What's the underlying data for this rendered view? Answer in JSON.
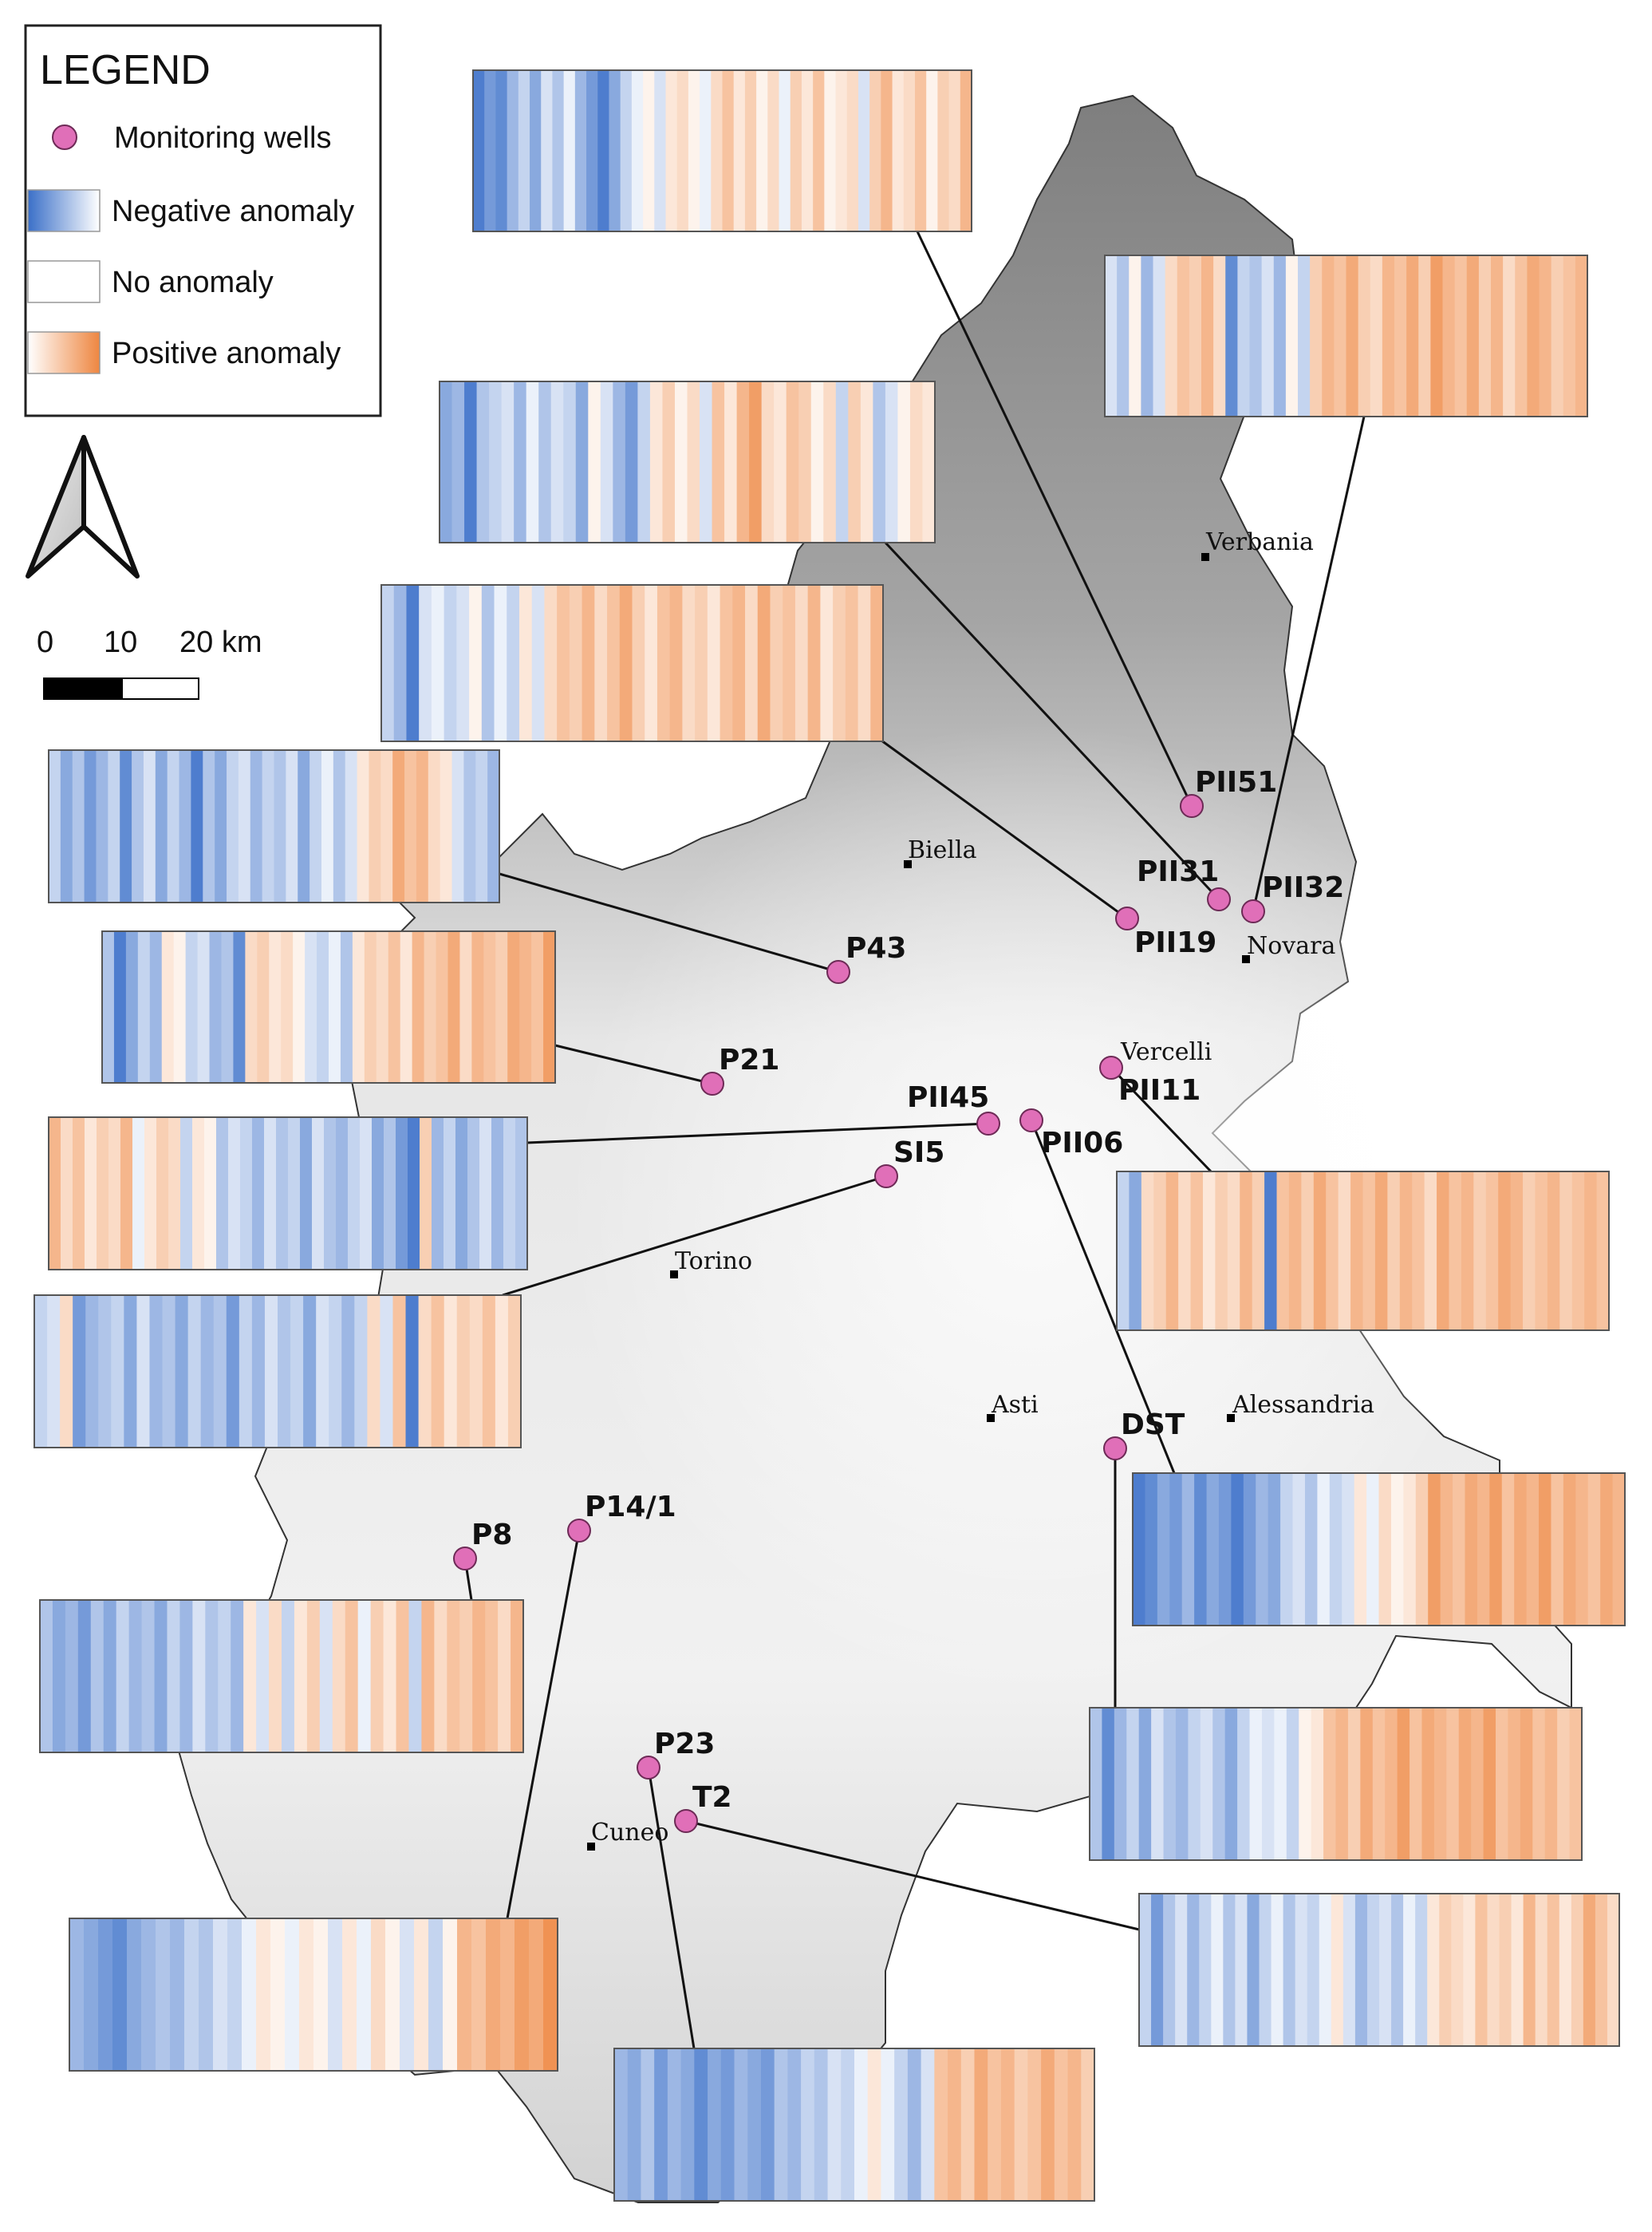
{
  "legend": {
    "title": "LEGEND",
    "items": [
      {
        "label": "Monitoring wells",
        "symbol": "well-dot",
        "color": "#e06fb8"
      },
      {
        "label": "Negative anomaly",
        "symbol": "gradient-negative",
        "color": "#3a6fc8"
      },
      {
        "label": "No anomaly",
        "symbol": "blank",
        "color": "#ffffff"
      },
      {
        "label": "Positive anomaly",
        "symbol": "gradient-positive",
        "color": "#ee8640"
      }
    ]
  },
  "north_arrow": {
    "icon": "north-arrow-icon"
  },
  "scale_bar": {
    "ticks": [
      "0",
      "10",
      "20 km"
    ]
  },
  "towns": [
    "Verbania",
    "Biella",
    "Novara",
    "Vercelli",
    "Torino",
    "Asti",
    "Alessandria",
    "Cuneo"
  ],
  "wells": [
    "PII51",
    "PII31",
    "PII32",
    "PII19",
    "P43",
    "P21",
    "PII45",
    "PII11",
    "PII06",
    "SI5",
    "DST",
    "P8",
    "P14/1",
    "P23",
    "T2"
  ],
  "stripe_panels": [
    {
      "well": "PII51",
      "pattern": [
        -0.9,
        -0.7,
        -0.8,
        -0.5,
        -0.3,
        -0.6,
        -0.2,
        -0.4,
        -0.1,
        -0.5,
        -0.7,
        -0.9,
        -0.6,
        -0.3,
        -0.1,
        0.1,
        -0.2,
        0.2,
        0.3,
        0.1,
        -0.1,
        0.3,
        0.5,
        0.2,
        0.4,
        0.1,
        0.3,
        -0.1,
        0.4,
        0.2,
        0.5,
        0.1,
        0.2,
        0.3,
        -0.2,
        0.4,
        0.6,
        0.2,
        0.3,
        0.5,
        0.1,
        0.4,
        0.3,
        0.6
      ]
    },
    {
      "well": "PII32",
      "pattern": [
        -0.2,
        -0.4,
        0.1,
        -0.5,
        -0.2,
        0.3,
        0.5,
        0.4,
        0.6,
        0.3,
        -0.8,
        -0.3,
        -0.4,
        -0.2,
        -0.5,
        0.1,
        -0.3,
        0.4,
        0.6,
        0.5,
        0.7,
        0.4,
        0.3,
        0.6,
        0.5,
        0.7,
        0.4,
        0.8,
        0.6,
        0.5,
        0.7,
        0.4,
        0.6,
        0.3,
        0.5,
        0.7,
        0.6,
        0.4,
        0.5,
        0.6
      ]
    },
    {
      "well": "PII31",
      "pattern": [
        -0.6,
        -0.5,
        -0.9,
        -0.4,
        -0.3,
        -0.2,
        -0.5,
        -0.1,
        -0.4,
        -0.2,
        -0.3,
        -0.6,
        0.1,
        -0.2,
        -0.5,
        -0.7,
        -0.3,
        0.2,
        0.4,
        0.1,
        0.3,
        -0.2,
        0.5,
        0.2,
        0.6,
        0.8,
        0.3,
        0.2,
        0.5,
        0.4,
        0.1,
        0.3,
        -0.3,
        0.4,
        0.2,
        -0.4,
        -0.2,
        0.1,
        0.3,
        0.2
      ]
    },
    {
      "well": "PII19",
      "pattern": [
        -0.3,
        -0.5,
        -0.9,
        -0.2,
        -0.1,
        -0.3,
        -0.2,
        0.1,
        -0.4,
        -0.1,
        -0.3,
        0.2,
        -0.2,
        0.3,
        0.5,
        0.4,
        0.6,
        0.3,
        0.5,
        0.7,
        0.4,
        0.2,
        0.5,
        0.6,
        0.3,
        0.4,
        0.2,
        0.5,
        0.6,
        0.3,
        0.7,
        0.4,
        0.5,
        0.3,
        0.6,
        0.2,
        0.4,
        0.5,
        0.3,
        0.6
      ]
    },
    {
      "well": "P43",
      "pattern": [
        -0.3,
        -0.6,
        -0.4,
        -0.7,
        -0.5,
        -0.3,
        -0.8,
        -0.4,
        -0.2,
        -0.6,
        -0.3,
        -0.5,
        -0.9,
        -0.4,
        -0.6,
        -0.3,
        -0.2,
        -0.5,
        -0.3,
        -0.4,
        -0.2,
        -0.6,
        -0.3,
        -0.1,
        -0.4,
        -0.2,
        0.2,
        0.4,
        0.3,
        0.7,
        0.5,
        0.6,
        0.3,
        0.2,
        -0.2,
        -0.4,
        -0.3,
        -0.5
      ]
    },
    {
      "well": "P21",
      "pattern": [
        -0.4,
        -0.9,
        -0.6,
        -0.3,
        -0.5,
        0.2,
        0.1,
        -0.3,
        -0.2,
        -0.5,
        -0.4,
        -0.8,
        0.3,
        0.4,
        0.2,
        0.3,
        0.1,
        -0.2,
        -0.3,
        -0.1,
        -0.4,
        0.2,
        0.4,
        0.3,
        0.5,
        0.2,
        0.6,
        0.4,
        0.5,
        0.7,
        0.3,
        0.6,
        0.5,
        0.4,
        0.7,
        0.6,
        0.5,
        0.8
      ]
    },
    {
      "well": "PII45",
      "pattern": [
        0.6,
        0.3,
        0.5,
        0.2,
        0.4,
        0.3,
        0.6,
        -0.1,
        0.2,
        0.4,
        0.3,
        -0.3,
        0.2,
        0.1,
        -0.4,
        -0.2,
        -0.3,
        -0.5,
        -0.2,
        -0.4,
        -0.3,
        -0.6,
        -0.2,
        -0.4,
        -0.5,
        -0.3,
        -0.2,
        -0.6,
        -0.4,
        -0.7,
        -0.9,
        0.4,
        -0.5,
        -0.3,
        -0.6,
        -0.4,
        -0.2,
        -0.5,
        -0.3,
        -0.4
      ]
    },
    {
      "well": "SI5",
      "pattern": [
        -0.3,
        -0.2,
        0.3,
        -0.7,
        -0.5,
        -0.4,
        -0.3,
        -0.6,
        -0.2,
        -0.5,
        -0.4,
        -0.6,
        -0.3,
        -0.5,
        -0.4,
        -0.7,
        -0.3,
        -0.5,
        -0.2,
        -0.4,
        -0.3,
        -0.6,
        -0.2,
        -0.3,
        -0.5,
        -0.3,
        0.3,
        -0.2,
        0.5,
        -0.9,
        0.3,
        0.5,
        0.2,
        0.4,
        0.3,
        0.5,
        0.2,
        0.4
      ]
    },
    {
      "well": "PII11",
      "pattern": [
        -0.3,
        -0.6,
        0.3,
        0.4,
        0.6,
        0.3,
        0.5,
        0.2,
        0.4,
        0.3,
        0.6,
        0.4,
        -0.9,
        0.5,
        0.6,
        0.4,
        0.7,
        0.5,
        0.3,
        0.6,
        0.5,
        0.7,
        0.4,
        0.6,
        0.5,
        0.3,
        0.7,
        0.5,
        0.6,
        0.4,
        0.5,
        0.7,
        0.6,
        0.4,
        0.5,
        0.6,
        0.4,
        0.5,
        0.6,
        0.5
      ]
    },
    {
      "well": "PII06",
      "pattern": [
        -0.9,
        -0.8,
        -0.6,
        -0.7,
        -0.5,
        -0.8,
        -0.6,
        -0.7,
        -0.9,
        -0.7,
        -0.5,
        -0.6,
        -0.3,
        -0.2,
        -0.4,
        -0.1,
        -0.3,
        -0.2,
        0.2,
        -0.1,
        0.3,
        0.1,
        0.2,
        0.4,
        0.8,
        0.6,
        0.5,
        0.7,
        0.6,
        0.8,
        0.5,
        0.7,
        0.6,
        0.8,
        0.5,
        0.7,
        0.6,
        0.5,
        0.7,
        0.6
      ]
    },
    {
      "well": "DST",
      "pattern": [
        -0.4,
        -0.8,
        -0.5,
        -0.3,
        -0.6,
        -0.2,
        -0.4,
        -0.5,
        -0.3,
        -0.2,
        -0.4,
        -0.6,
        -0.3,
        -0.1,
        -0.2,
        -0.1,
        -0.3,
        0.1,
        0.2,
        0.5,
        0.6,
        0.4,
        0.7,
        0.5,
        0.6,
        0.8,
        0.5,
        0.7,
        0.6,
        0.5,
        0.7,
        0.6,
        0.8,
        0.5,
        0.6,
        0.7,
        0.5,
        0.6,
        0.4,
        0.5
      ]
    },
    {
      "well": "P8",
      "pattern": [
        -0.4,
        -0.6,
        -0.5,
        -0.7,
        -0.4,
        -0.6,
        -0.3,
        -0.5,
        -0.4,
        -0.6,
        -0.3,
        -0.5,
        -0.2,
        -0.4,
        -0.3,
        -0.5,
        0.2,
        -0.2,
        0.3,
        -0.3,
        0.2,
        0.4,
        -0.2,
        0.3,
        0.5,
        -0.1,
        0.4,
        0.2,
        0.5,
        -0.3,
        0.6,
        0.3,
        0.5,
        0.4,
        0.6,
        0.5,
        0.3,
        0.6
      ]
    },
    {
      "well": "P14/1",
      "pattern": [
        -0.5,
        -0.6,
        -0.7,
        -0.8,
        -0.6,
        -0.5,
        -0.4,
        -0.5,
        -0.3,
        -0.4,
        -0.2,
        -0.3,
        -0.1,
        0.2,
        0.1,
        -0.1,
        0.2,
        0.1,
        -0.2,
        0.2,
        -0.1,
        0.3,
        0.1,
        -0.2,
        0.2,
        -0.3,
        0.1,
        0.6,
        0.5,
        0.7,
        0.6,
        0.8,
        0.7,
        0.9
      ]
    },
    {
      "well": "T2",
      "pattern": [
        -0.3,
        -0.7,
        -0.4,
        -0.2,
        -0.5,
        -0.3,
        -0.1,
        -0.4,
        -0.2,
        -0.6,
        -0.3,
        -0.1,
        -0.4,
        -0.2,
        -0.3,
        -0.1,
        0.2,
        -0.2,
        -0.5,
        -0.3,
        -0.2,
        -0.4,
        -0.1,
        -0.3,
        0.2,
        0.4,
        0.3,
        0.2,
        0.5,
        0.3,
        0.4,
        0.2,
        0.6,
        0.3,
        0.5,
        0.2,
        0.4,
        0.7,
        0.5,
        0.3
      ]
    },
    {
      "well": "P23",
      "pattern": [
        -0.5,
        -0.6,
        -0.4,
        -0.7,
        -0.5,
        -0.6,
        -0.8,
        -0.6,
        -0.7,
        -0.5,
        -0.6,
        -0.7,
        -0.4,
        -0.5,
        -0.3,
        -0.4,
        -0.2,
        -0.3,
        -0.1,
        0.2,
        -0.1,
        -0.3,
        -0.5,
        -0.2,
        0.5,
        0.6,
        0.4,
        0.7,
        0.5,
        0.6,
        0.4,
        0.5,
        0.7,
        0.5,
        0.6,
        0.4
      ]
    }
  ]
}
